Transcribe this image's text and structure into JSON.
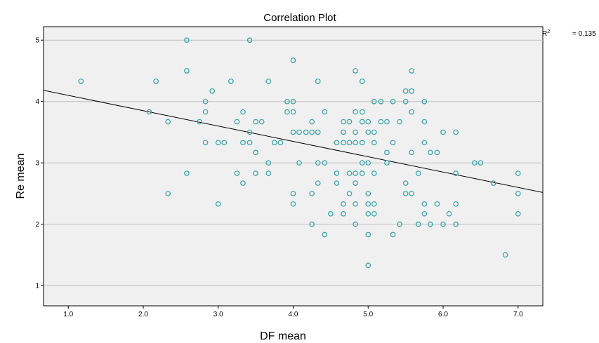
{
  "chart_data": {
    "type": "scatter",
    "title": "Correlation Plot",
    "xlabel": "DF mean",
    "ylabel": "Re mean",
    "xlim": [
      0.67,
      7.33
    ],
    "ylim": [
      0.67,
      5.22
    ],
    "xticks": [
      "1.0",
      "2.0",
      "3.0",
      "4.0",
      "5.0",
      "6.0",
      "7.0"
    ],
    "yticks": [
      "1",
      "2",
      "3",
      "4",
      "5"
    ],
    "grid": "horizontal",
    "fit_line": {
      "slope": -0.25,
      "intercept": 4.35
    },
    "r2_label": "R",
    "r2_sup": "2",
    "r2_value": "= 0.135",
    "marker_color": "#3aa6ad",
    "points": [
      [
        1.17,
        4.33
      ],
      [
        2.08,
        3.83
      ],
      [
        2.17,
        4.33
      ],
      [
        2.33,
        3.67
      ],
      [
        2.33,
        2.5
      ],
      [
        2.58,
        5.0
      ],
      [
        2.58,
        4.5
      ],
      [
        2.58,
        2.83
      ],
      [
        2.75,
        3.67
      ],
      [
        2.83,
        4.0
      ],
      [
        2.83,
        3.83
      ],
      [
        2.83,
        3.33
      ],
      [
        2.92,
        4.17
      ],
      [
        3.0,
        3.33
      ],
      [
        3.0,
        2.33
      ],
      [
        3.08,
        3.33
      ],
      [
        3.17,
        4.33
      ],
      [
        3.25,
        3.67
      ],
      [
        3.25,
        2.83
      ],
      [
        3.33,
        3.83
      ],
      [
        3.33,
        3.33
      ],
      [
        3.33,
        2.67
      ],
      [
        3.42,
        5.0
      ],
      [
        3.42,
        3.5
      ],
      [
        3.42,
        3.33
      ],
      [
        3.5,
        3.67
      ],
      [
        3.5,
        3.17
      ],
      [
        3.5,
        2.83
      ],
      [
        3.58,
        3.67
      ],
      [
        3.67,
        4.33
      ],
      [
        3.67,
        3.0
      ],
      [
        3.67,
        2.83
      ],
      [
        3.75,
        3.33
      ],
      [
        3.83,
        3.33
      ],
      [
        3.92,
        4.0
      ],
      [
        3.92,
        3.83
      ],
      [
        4.0,
        4.67
      ],
      [
        4.0,
        4.0
      ],
      [
        4.0,
        3.83
      ],
      [
        4.0,
        3.5
      ],
      [
        4.0,
        2.5
      ],
      [
        4.0,
        2.33
      ],
      [
        4.08,
        3.5
      ],
      [
        4.08,
        3.0
      ],
      [
        4.17,
        3.5
      ],
      [
        4.25,
        3.67
      ],
      [
        4.25,
        3.5
      ],
      [
        4.25,
        2.5
      ],
      [
        4.25,
        2.0
      ],
      [
        4.33,
        4.33
      ],
      [
        4.33,
        3.5
      ],
      [
        4.33,
        3.0
      ],
      [
        4.33,
        2.67
      ],
      [
        4.42,
        3.83
      ],
      [
        4.42,
        3.0
      ],
      [
        4.42,
        1.83
      ],
      [
        4.5,
        2.17
      ],
      [
        4.58,
        3.33
      ],
      [
        4.58,
        2.83
      ],
      [
        4.58,
        2.67
      ],
      [
        4.67,
        3.67
      ],
      [
        4.67,
        3.5
      ],
      [
        4.67,
        3.33
      ],
      [
        4.67,
        2.33
      ],
      [
        4.67,
        2.17
      ],
      [
        4.75,
        3.67
      ],
      [
        4.75,
        3.33
      ],
      [
        4.75,
        2.83
      ],
      [
        4.75,
        2.5
      ],
      [
        4.83,
        4.5
      ],
      [
        4.83,
        3.83
      ],
      [
        4.83,
        3.5
      ],
      [
        4.83,
        3.33
      ],
      [
        4.83,
        2.83
      ],
      [
        4.83,
        2.67
      ],
      [
        4.83,
        2.33
      ],
      [
        4.83,
        2.0
      ],
      [
        4.92,
        4.33
      ],
      [
        4.92,
        3.83
      ],
      [
        4.92,
        3.67
      ],
      [
        4.92,
        3.33
      ],
      [
        4.92,
        3.0
      ],
      [
        4.92,
        2.83
      ],
      [
        5.0,
        3.67
      ],
      [
        5.0,
        3.5
      ],
      [
        5.0,
        3.0
      ],
      [
        5.0,
        2.5
      ],
      [
        5.0,
        2.33
      ],
      [
        5.0,
        2.17
      ],
      [
        5.0,
        1.83
      ],
      [
        5.0,
        1.33
      ],
      [
        5.08,
        4.0
      ],
      [
        5.08,
        3.5
      ],
      [
        5.08,
        3.33
      ],
      [
        5.08,
        2.83
      ],
      [
        5.08,
        2.33
      ],
      [
        5.08,
        2.17
      ],
      [
        5.17,
        4.0
      ],
      [
        5.17,
        3.67
      ],
      [
        5.25,
        3.67
      ],
      [
        5.25,
        3.17
      ],
      [
        5.25,
        3.0
      ],
      [
        5.33,
        4.0
      ],
      [
        5.33,
        3.33
      ],
      [
        5.33,
        1.83
      ],
      [
        5.42,
        3.67
      ],
      [
        5.42,
        2.0
      ],
      [
        5.5,
        4.17
      ],
      [
        5.5,
        4.0
      ],
      [
        5.5,
        2.67
      ],
      [
        5.5,
        2.5
      ],
      [
        5.58,
        4.5
      ],
      [
        5.58,
        4.17
      ],
      [
        5.58,
        3.83
      ],
      [
        5.58,
        3.17
      ],
      [
        5.58,
        2.5
      ],
      [
        5.67,
        2.83
      ],
      [
        5.67,
        2.0
      ],
      [
        5.75,
        4.0
      ],
      [
        5.75,
        3.67
      ],
      [
        5.75,
        3.33
      ],
      [
        5.75,
        2.33
      ],
      [
        5.75,
        2.17
      ],
      [
        5.83,
        3.17
      ],
      [
        5.83,
        2.0
      ],
      [
        5.92,
        3.17
      ],
      [
        5.92,
        2.33
      ],
      [
        6.0,
        3.5
      ],
      [
        6.0,
        2.0
      ],
      [
        6.08,
        2.17
      ],
      [
        6.17,
        3.5
      ],
      [
        6.17,
        2.83
      ],
      [
        6.17,
        2.33
      ],
      [
        6.17,
        2.0
      ],
      [
        6.42,
        3.0
      ],
      [
        6.5,
        3.0
      ],
      [
        6.67,
        2.67
      ],
      [
        6.83,
        1.5
      ],
      [
        7.0,
        2.83
      ],
      [
        7.0,
        2.5
      ],
      [
        7.0,
        2.17
      ]
    ]
  }
}
